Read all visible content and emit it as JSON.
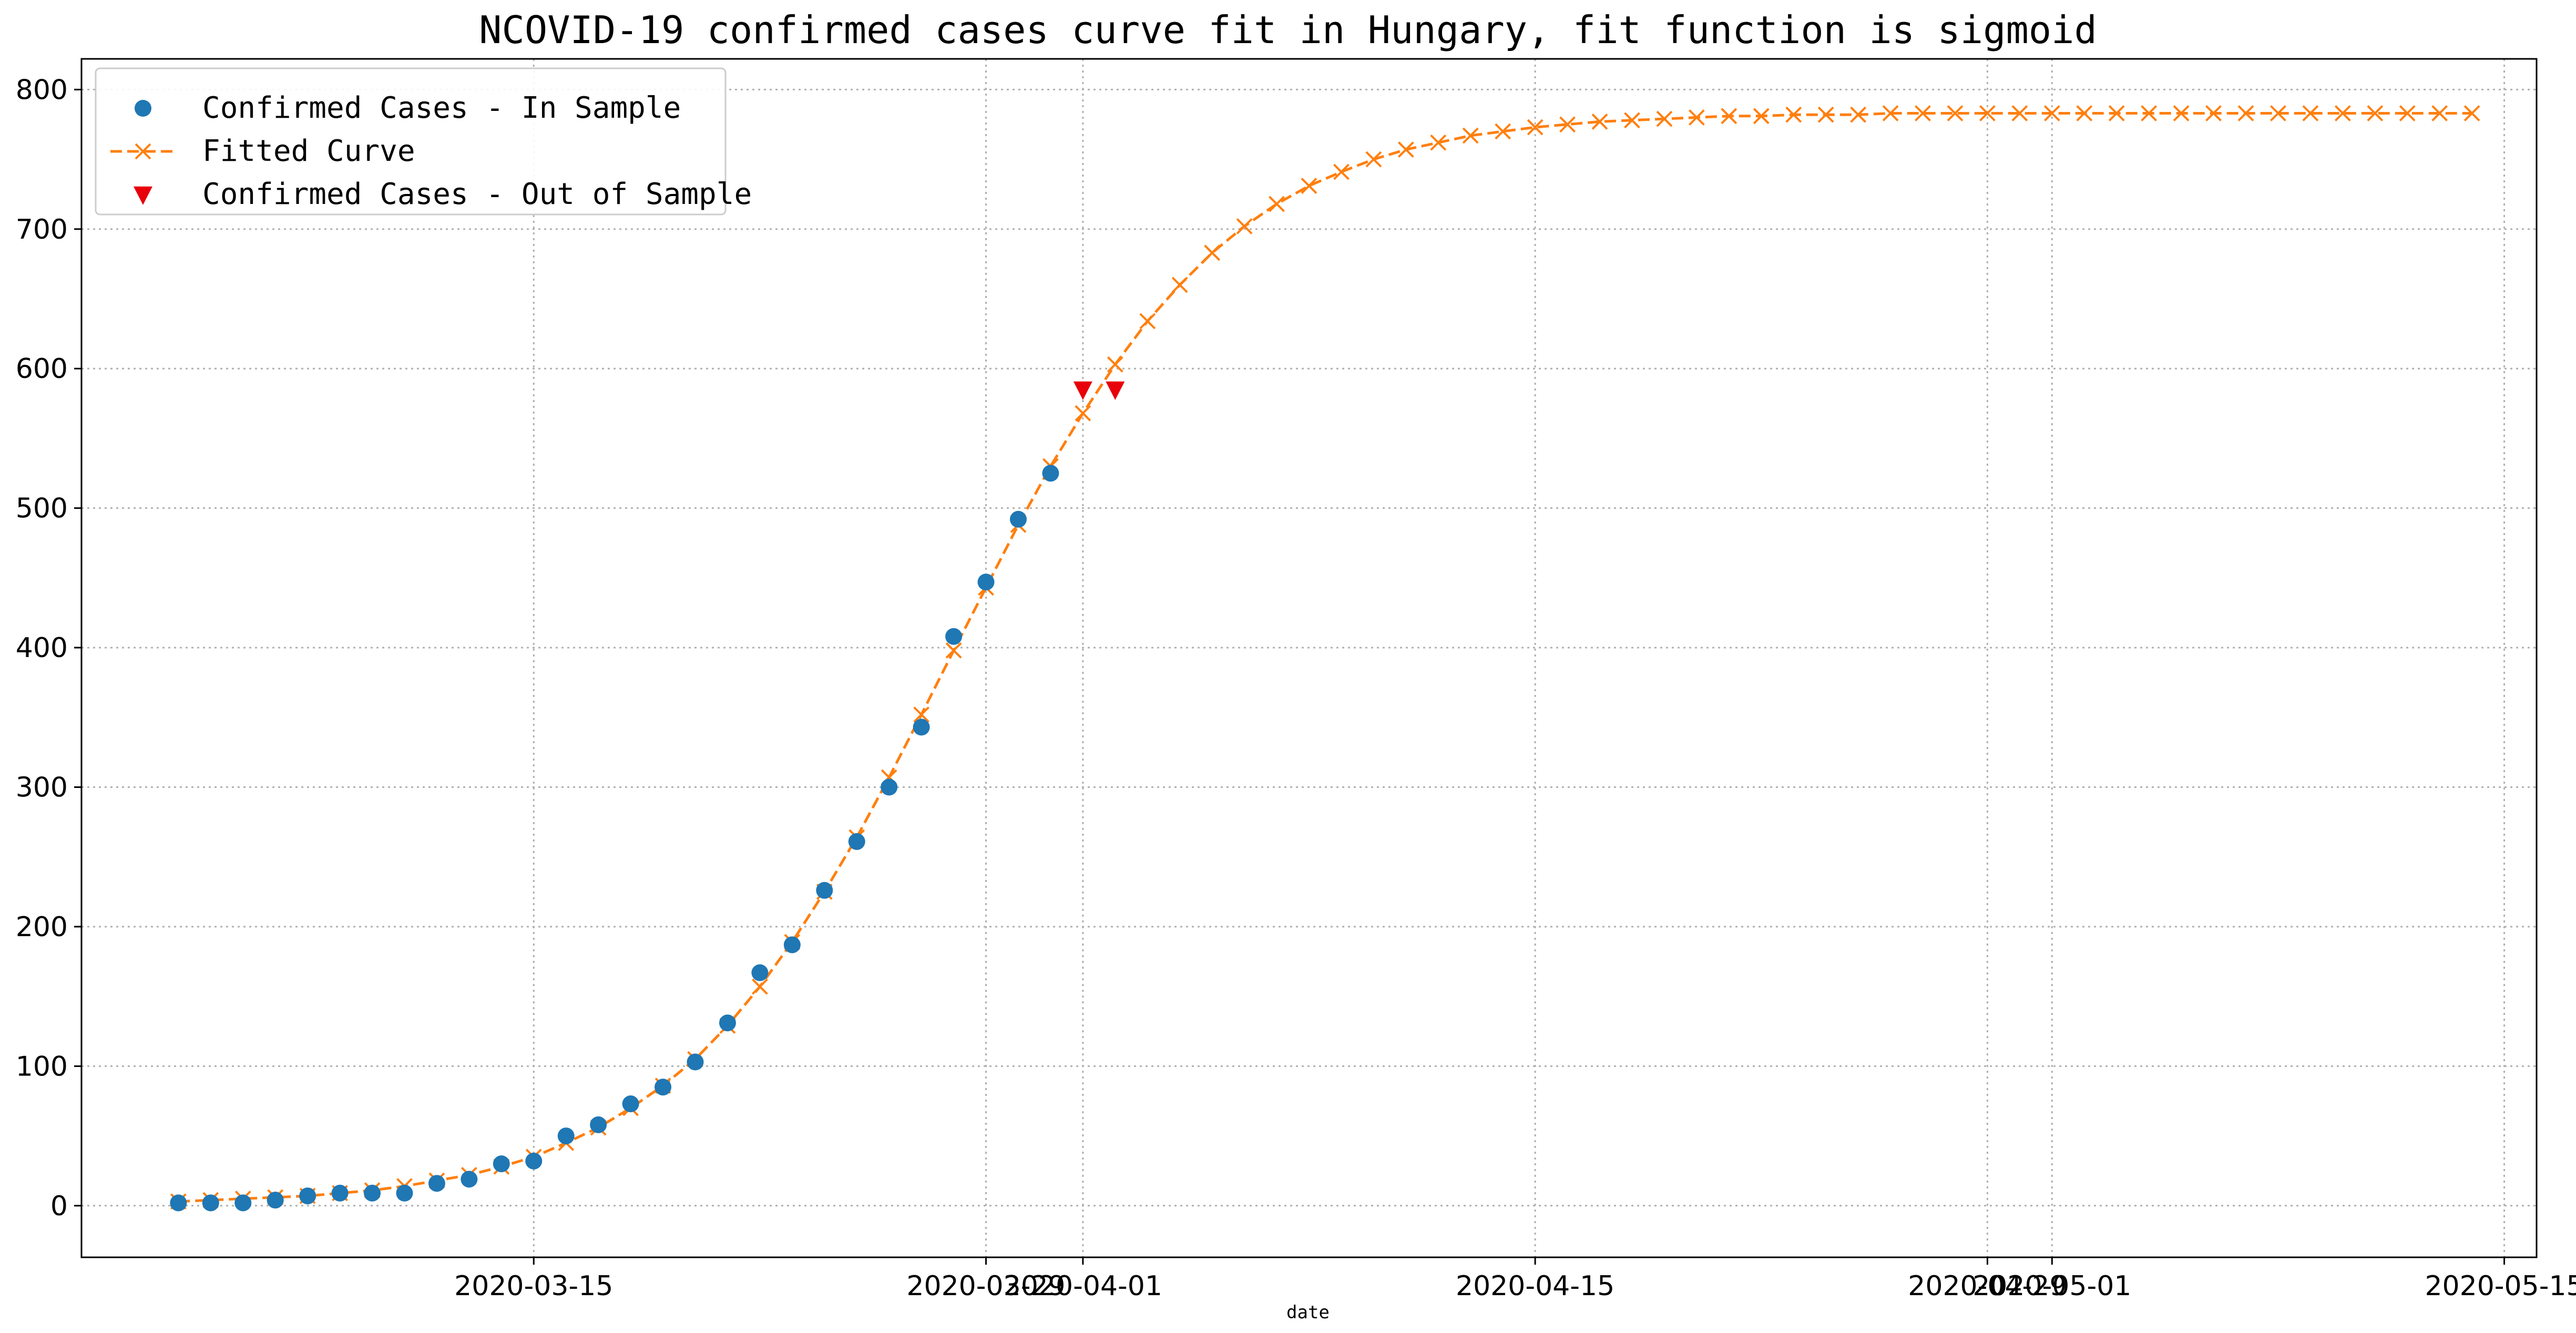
{
  "chart_data": {
    "type": "line",
    "title": "NCOVID-19 confirmed cases curve fit in Hungary, fit function is sigmoid",
    "xlabel": "date",
    "ylabel": "",
    "grid": true,
    "legend_position": "top-left",
    "x_axis": {
      "type": "date",
      "range": [
        "2020-03-01",
        "2020-05-16"
      ],
      "tick_labels": [
        "2020-03-15",
        "2020-03-29",
        "2020-04-01",
        "2020-04-15",
        "2020-04-29",
        "2020-05-01",
        "2020-05-15"
      ],
      "tick_dates": [
        "2020-03-15",
        "2020-03-29",
        "2020-04-01",
        "2020-04-15",
        "2020-04-29",
        "2020-05-01",
        "2020-05-15"
      ]
    },
    "y_axis": {
      "range": [
        -37,
        822
      ],
      "ticks": [
        0,
        100,
        200,
        300,
        400,
        500,
        600,
        700,
        800
      ]
    },
    "series": [
      {
        "name": "Confirmed Cases - In Sample",
        "style": "marker-circle",
        "color": "#1f77b4",
        "points": [
          [
            "2020-03-04",
            2
          ],
          [
            "2020-03-05",
            2
          ],
          [
            "2020-03-06",
            2
          ],
          [
            "2020-03-07",
            4
          ],
          [
            "2020-03-08",
            7
          ],
          [
            "2020-03-09",
            9
          ],
          [
            "2020-03-10",
            9
          ],
          [
            "2020-03-11",
            9
          ],
          [
            "2020-03-12",
            16
          ],
          [
            "2020-03-13",
            19
          ],
          [
            "2020-03-14",
            30
          ],
          [
            "2020-03-15",
            32
          ],
          [
            "2020-03-16",
            50
          ],
          [
            "2020-03-17",
            58
          ],
          [
            "2020-03-18",
            73
          ],
          [
            "2020-03-19",
            85
          ],
          [
            "2020-03-20",
            103
          ],
          [
            "2020-03-21",
            131
          ],
          [
            "2020-03-22",
            167
          ],
          [
            "2020-03-23",
            187
          ],
          [
            "2020-03-24",
            226
          ],
          [
            "2020-03-25",
            261
          ],
          [
            "2020-03-26",
            300
          ],
          [
            "2020-03-27",
            343
          ],
          [
            "2020-03-28",
            408
          ],
          [
            "2020-03-29",
            447
          ],
          [
            "2020-03-30",
            492
          ],
          [
            "2020-03-31",
            525
          ]
        ]
      },
      {
        "name": "Fitted Curve",
        "style": "dashed-line-x-marker",
        "color": "#ff7f0e",
        "points": [
          [
            "2020-03-04",
            3
          ],
          [
            "2020-03-05",
            4
          ],
          [
            "2020-03-06",
            5
          ],
          [
            "2020-03-07",
            6
          ],
          [
            "2020-03-08",
            7
          ],
          [
            "2020-03-09",
            9
          ],
          [
            "2020-03-10",
            11
          ],
          [
            "2020-03-11",
            14
          ],
          [
            "2020-03-12",
            18
          ],
          [
            "2020-03-13",
            22
          ],
          [
            "2020-03-14",
            28
          ],
          [
            "2020-03-15",
            35
          ],
          [
            "2020-03-16",
            45
          ],
          [
            "2020-03-17",
            56
          ],
          [
            "2020-03-18",
            70
          ],
          [
            "2020-03-19",
            86
          ],
          [
            "2020-03-20",
            105
          ],
          [
            "2020-03-21",
            129
          ],
          [
            "2020-03-22",
            157
          ],
          [
            "2020-03-23",
            189
          ],
          [
            "2020-03-24",
            225
          ],
          [
            "2020-03-25",
            264
          ],
          [
            "2020-03-26",
            307
          ],
          [
            "2020-03-27",
            352
          ],
          [
            "2020-03-28",
            398
          ],
          [
            "2020-03-29",
            443
          ],
          [
            "2020-03-30",
            488
          ],
          [
            "2020-03-31",
            530
          ],
          [
            "2020-04-01",
            568
          ],
          [
            "2020-04-02",
            603
          ],
          [
            "2020-04-03",
            634
          ],
          [
            "2020-04-04",
            660
          ],
          [
            "2020-04-05",
            683
          ],
          [
            "2020-04-06",
            702
          ],
          [
            "2020-04-07",
            718
          ],
          [
            "2020-04-08",
            731
          ],
          [
            "2020-04-09",
            741
          ],
          [
            "2020-04-10",
            750
          ],
          [
            "2020-04-11",
            757
          ],
          [
            "2020-04-12",
            762
          ],
          [
            "2020-04-13",
            767
          ],
          [
            "2020-04-14",
            770
          ],
          [
            "2020-04-15",
            773
          ],
          [
            "2020-04-16",
            775
          ],
          [
            "2020-04-17",
            777
          ],
          [
            "2020-04-18",
            778
          ],
          [
            "2020-04-19",
            779
          ],
          [
            "2020-04-20",
            780
          ],
          [
            "2020-04-21",
            781
          ],
          [
            "2020-04-22",
            781
          ],
          [
            "2020-04-23",
            782
          ],
          [
            "2020-04-24",
            782
          ],
          [
            "2020-04-25",
            782
          ],
          [
            "2020-04-26",
            783
          ],
          [
            "2020-04-27",
            783
          ],
          [
            "2020-04-28",
            783
          ],
          [
            "2020-04-29",
            783
          ],
          [
            "2020-04-30",
            783
          ],
          [
            "2020-05-01",
            783
          ],
          [
            "2020-05-02",
            783
          ],
          [
            "2020-05-03",
            783
          ],
          [
            "2020-05-04",
            783
          ],
          [
            "2020-05-05",
            783
          ],
          [
            "2020-05-06",
            783
          ],
          [
            "2020-05-07",
            783
          ],
          [
            "2020-05-08",
            783
          ],
          [
            "2020-05-09",
            783
          ],
          [
            "2020-05-10",
            783
          ],
          [
            "2020-05-11",
            783
          ],
          [
            "2020-05-12",
            783
          ],
          [
            "2020-05-13",
            783
          ],
          [
            "2020-05-14",
            783
          ]
        ]
      },
      {
        "name": "Confirmed Cases - Out of Sample",
        "style": "marker-triangle-down",
        "color": "#e8000b",
        "points": [
          [
            "2020-04-01",
            585
          ],
          [
            "2020-04-02",
            585
          ]
        ]
      }
    ]
  }
}
